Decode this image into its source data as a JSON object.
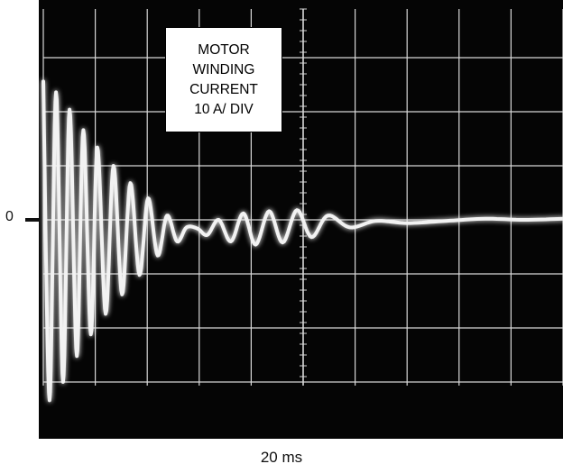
{
  "chart_data": {
    "type": "line",
    "title": "",
    "xlabel": "20 ms",
    "ylabel": "",
    "zero_marker_label": "0",
    "annotation": [
      "MOTOR",
      "WINDING",
      "CURRENT",
      "10 A/ DIV"
    ],
    "x_units": "ms",
    "y_units": "A",
    "x_per_div": 20,
    "y_per_div": 10,
    "xlim": [
      0,
      200
    ],
    "ylim": [
      -40,
      40
    ],
    "grid": true,
    "series": [
      {
        "values_description_free": true,
        "x": [
          0,
          2.4,
          4.9,
          7.6,
          10.1,
          12.9,
          15.4,
          18.3,
          20.8,
          24.0,
          27.0,
          30.3,
          33.5,
          37.0,
          40.3,
          44.0,
          47.6,
          51.5,
          55.1,
          59.3,
          63.1,
          67.5,
          72.2,
          77.0,
          81.7,
          86.9,
          92.1,
          97.6,
          103.2,
          109.5,
          118.0,
          128.0,
          140.0,
          155.0,
          170.0,
          185.0,
          200.0
        ],
        "y": [
          25.6,
          -33.4,
          23.6,
          -30.0,
          20.4,
          -25.2,
          16.6,
          -21.2,
          13.4,
          -17.4,
          10.0,
          -13.8,
          6.8,
          -10.2,
          4.0,
          -6.6,
          0.8,
          -4.0,
          -1.4,
          -1.6,
          -2.8,
          0.0,
          -4.0,
          1.2,
          -4.6,
          1.6,
          -4.2,
          1.8,
          -3.2,
          0.8,
          -1.4,
          -0.2,
          -0.6,
          -0.2,
          0.2,
          0.0,
          0.2
        ]
      }
    ],
    "trace_color": "#f2f2f2",
    "screen_color": "#050505",
    "grid_color": "#d8d8d8"
  }
}
